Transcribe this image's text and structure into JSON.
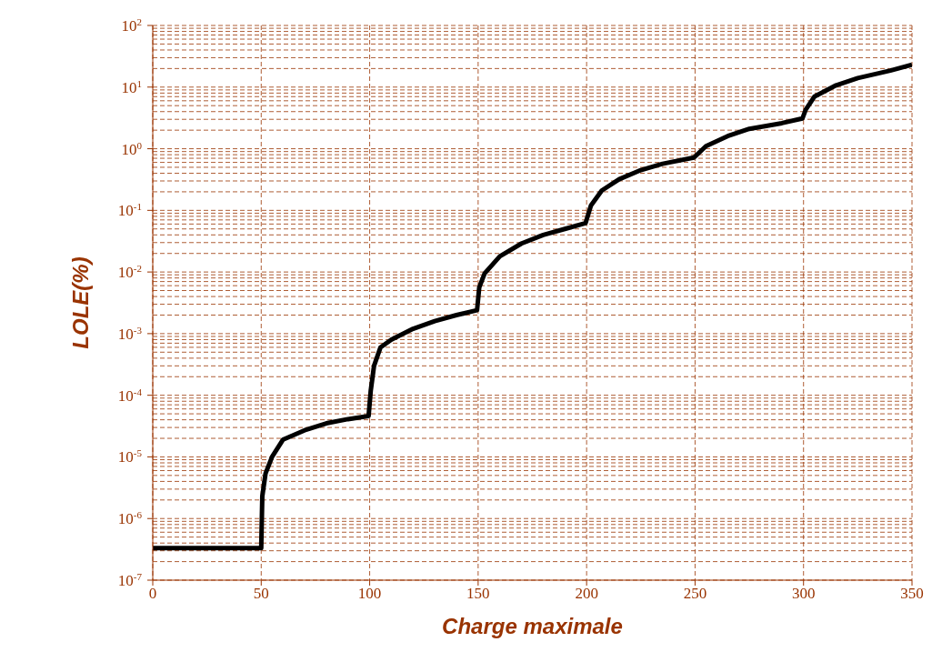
{
  "chart_data": {
    "type": "line",
    "xlabel": "Charge maximale",
    "ylabel": "LOLE(%)",
    "log": "y",
    "grid": true,
    "marker": "none",
    "line_style": "solid",
    "xlim": [
      0,
      350
    ],
    "xticks": [
      0,
      50,
      100,
      150,
      200,
      250,
      300,
      350
    ],
    "ylim": [
      1e-07,
      100
    ],
    "yticks": [
      {
        "value": 1e-07,
        "label": "10$^{-7}$"
      },
      {
        "value": 1e-06,
        "label": "10$^{-6}$"
      },
      {
        "value": 1e-05,
        "label": "10$^{-5}$"
      },
      {
        "value": 0.0001,
        "label": "10$^{-4}$"
      },
      {
        "value": 0.001,
        "label": "10$^{-3}$"
      },
      {
        "value": 0.01,
        "label": "10$^{-2}$"
      },
      {
        "value": 0.1,
        "label": "10$^{-1}$"
      },
      {
        "value": 1,
        "label": "10$^{0}$"
      },
      {
        "value": 10,
        "label": "10$^{1}$"
      },
      {
        "value": 100,
        "label": "10$^{2}$"
      }
    ],
    "series": [
      {
        "color": "#000000",
        "x": [
          0,
          50,
          50.5,
          52,
          55,
          60,
          70,
          80,
          90,
          99.5,
          100.5,
          102,
          105,
          110,
          120,
          130,
          140,
          149.5,
          150.5,
          153,
          160,
          170,
          180,
          190,
          199.5,
          202,
          207,
          215,
          225,
          235,
          249.5,
          255,
          265,
          275,
          290,
          299.5,
          301,
          305,
          315,
          325,
          340,
          350
        ],
        "values": [
          3.3e-07,
          3.3e-07,
          2.3e-06,
          5.4e-06,
          1e-05,
          1.9e-05,
          2.7e-05,
          3.5e-05,
          4.1e-05,
          4.6e-05,
          0.00012,
          0.0003,
          0.0006,
          0.0008,
          0.0012,
          0.0016,
          0.002,
          0.0024,
          0.0056,
          0.0095,
          0.018,
          0.029,
          0.04,
          0.05,
          0.062,
          0.12,
          0.21,
          0.32,
          0.45,
          0.57,
          0.72,
          1.1,
          1.6,
          2.1,
          2.6,
          3.1,
          4.3,
          7,
          10.7,
          14,
          18.5,
          23
        ]
      }
    ]
  }
}
